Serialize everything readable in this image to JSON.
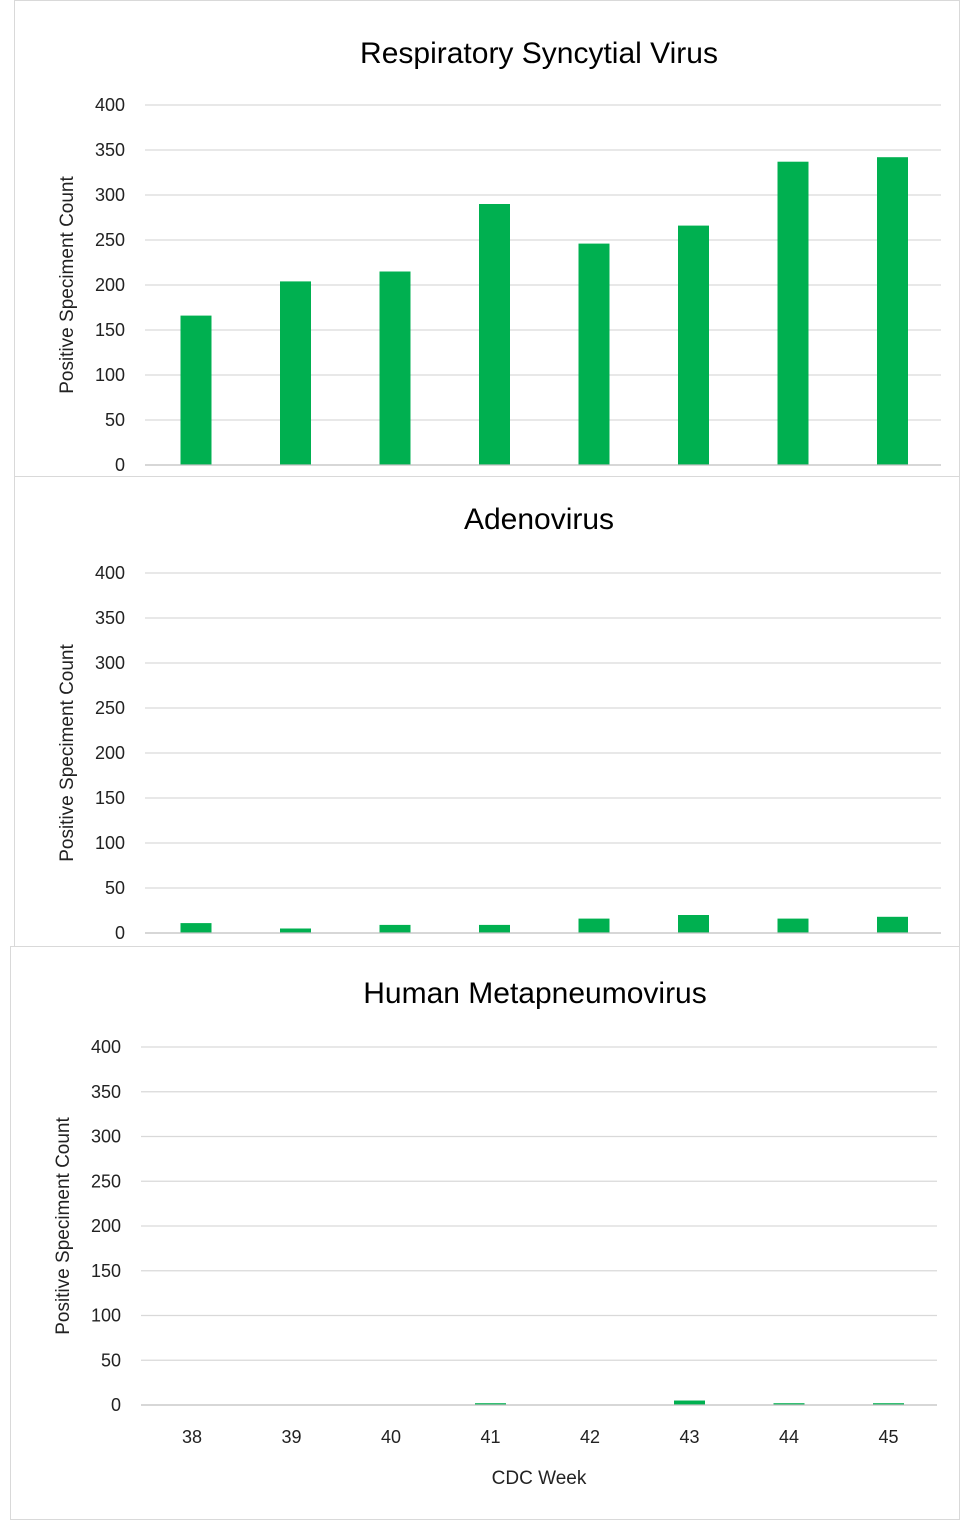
{
  "colors": {
    "bar": "#00b050",
    "grid": "#d9d9d9",
    "text": "#222222"
  },
  "chart_data": [
    {
      "type": "bar",
      "title": "Respiratory Syncytial Virus",
      "ylabel": "Positive Speciment Count",
      "xlabel": "",
      "categories": [
        "38",
        "39",
        "40",
        "41",
        "42",
        "43",
        "44",
        "45"
      ],
      "values": [
        166,
        204,
        215,
        290,
        246,
        266,
        337,
        342
      ],
      "ylim": [
        0,
        400
      ],
      "yticks": [
        "0",
        "50",
        "100",
        "150",
        "200",
        "250",
        "300",
        "350",
        "400"
      ],
      "show_x_tick_labels": false,
      "grid": true,
      "legend": "none"
    },
    {
      "type": "bar",
      "title": "Adenovirus",
      "ylabel": "Positive Speciment Count",
      "xlabel": "",
      "categories": [
        "38",
        "39",
        "40",
        "41",
        "42",
        "43",
        "44",
        "45"
      ],
      "values": [
        11,
        5,
        9,
        9,
        16,
        20,
        16,
        18
      ],
      "ylim": [
        0,
        400
      ],
      "yticks": [
        "0",
        "50",
        "100",
        "150",
        "200",
        "250",
        "300",
        "350",
        "400"
      ],
      "show_x_tick_labels": false,
      "grid": true,
      "legend": "none"
    },
    {
      "type": "bar",
      "title": "Human Metapneumovirus",
      "ylabel": "Positive Speciment Count",
      "xlabel": "CDC Week",
      "categories": [
        "38",
        "39",
        "40",
        "41",
        "42",
        "43",
        "44",
        "45"
      ],
      "values": [
        0,
        0,
        0,
        2,
        0,
        5,
        2,
        2
      ],
      "ylim": [
        0,
        400
      ],
      "yticks": [
        "0",
        "50",
        "100",
        "150",
        "200",
        "250",
        "300",
        "350",
        "400"
      ],
      "show_x_tick_labels": true,
      "grid": true,
      "legend": "none"
    }
  ]
}
